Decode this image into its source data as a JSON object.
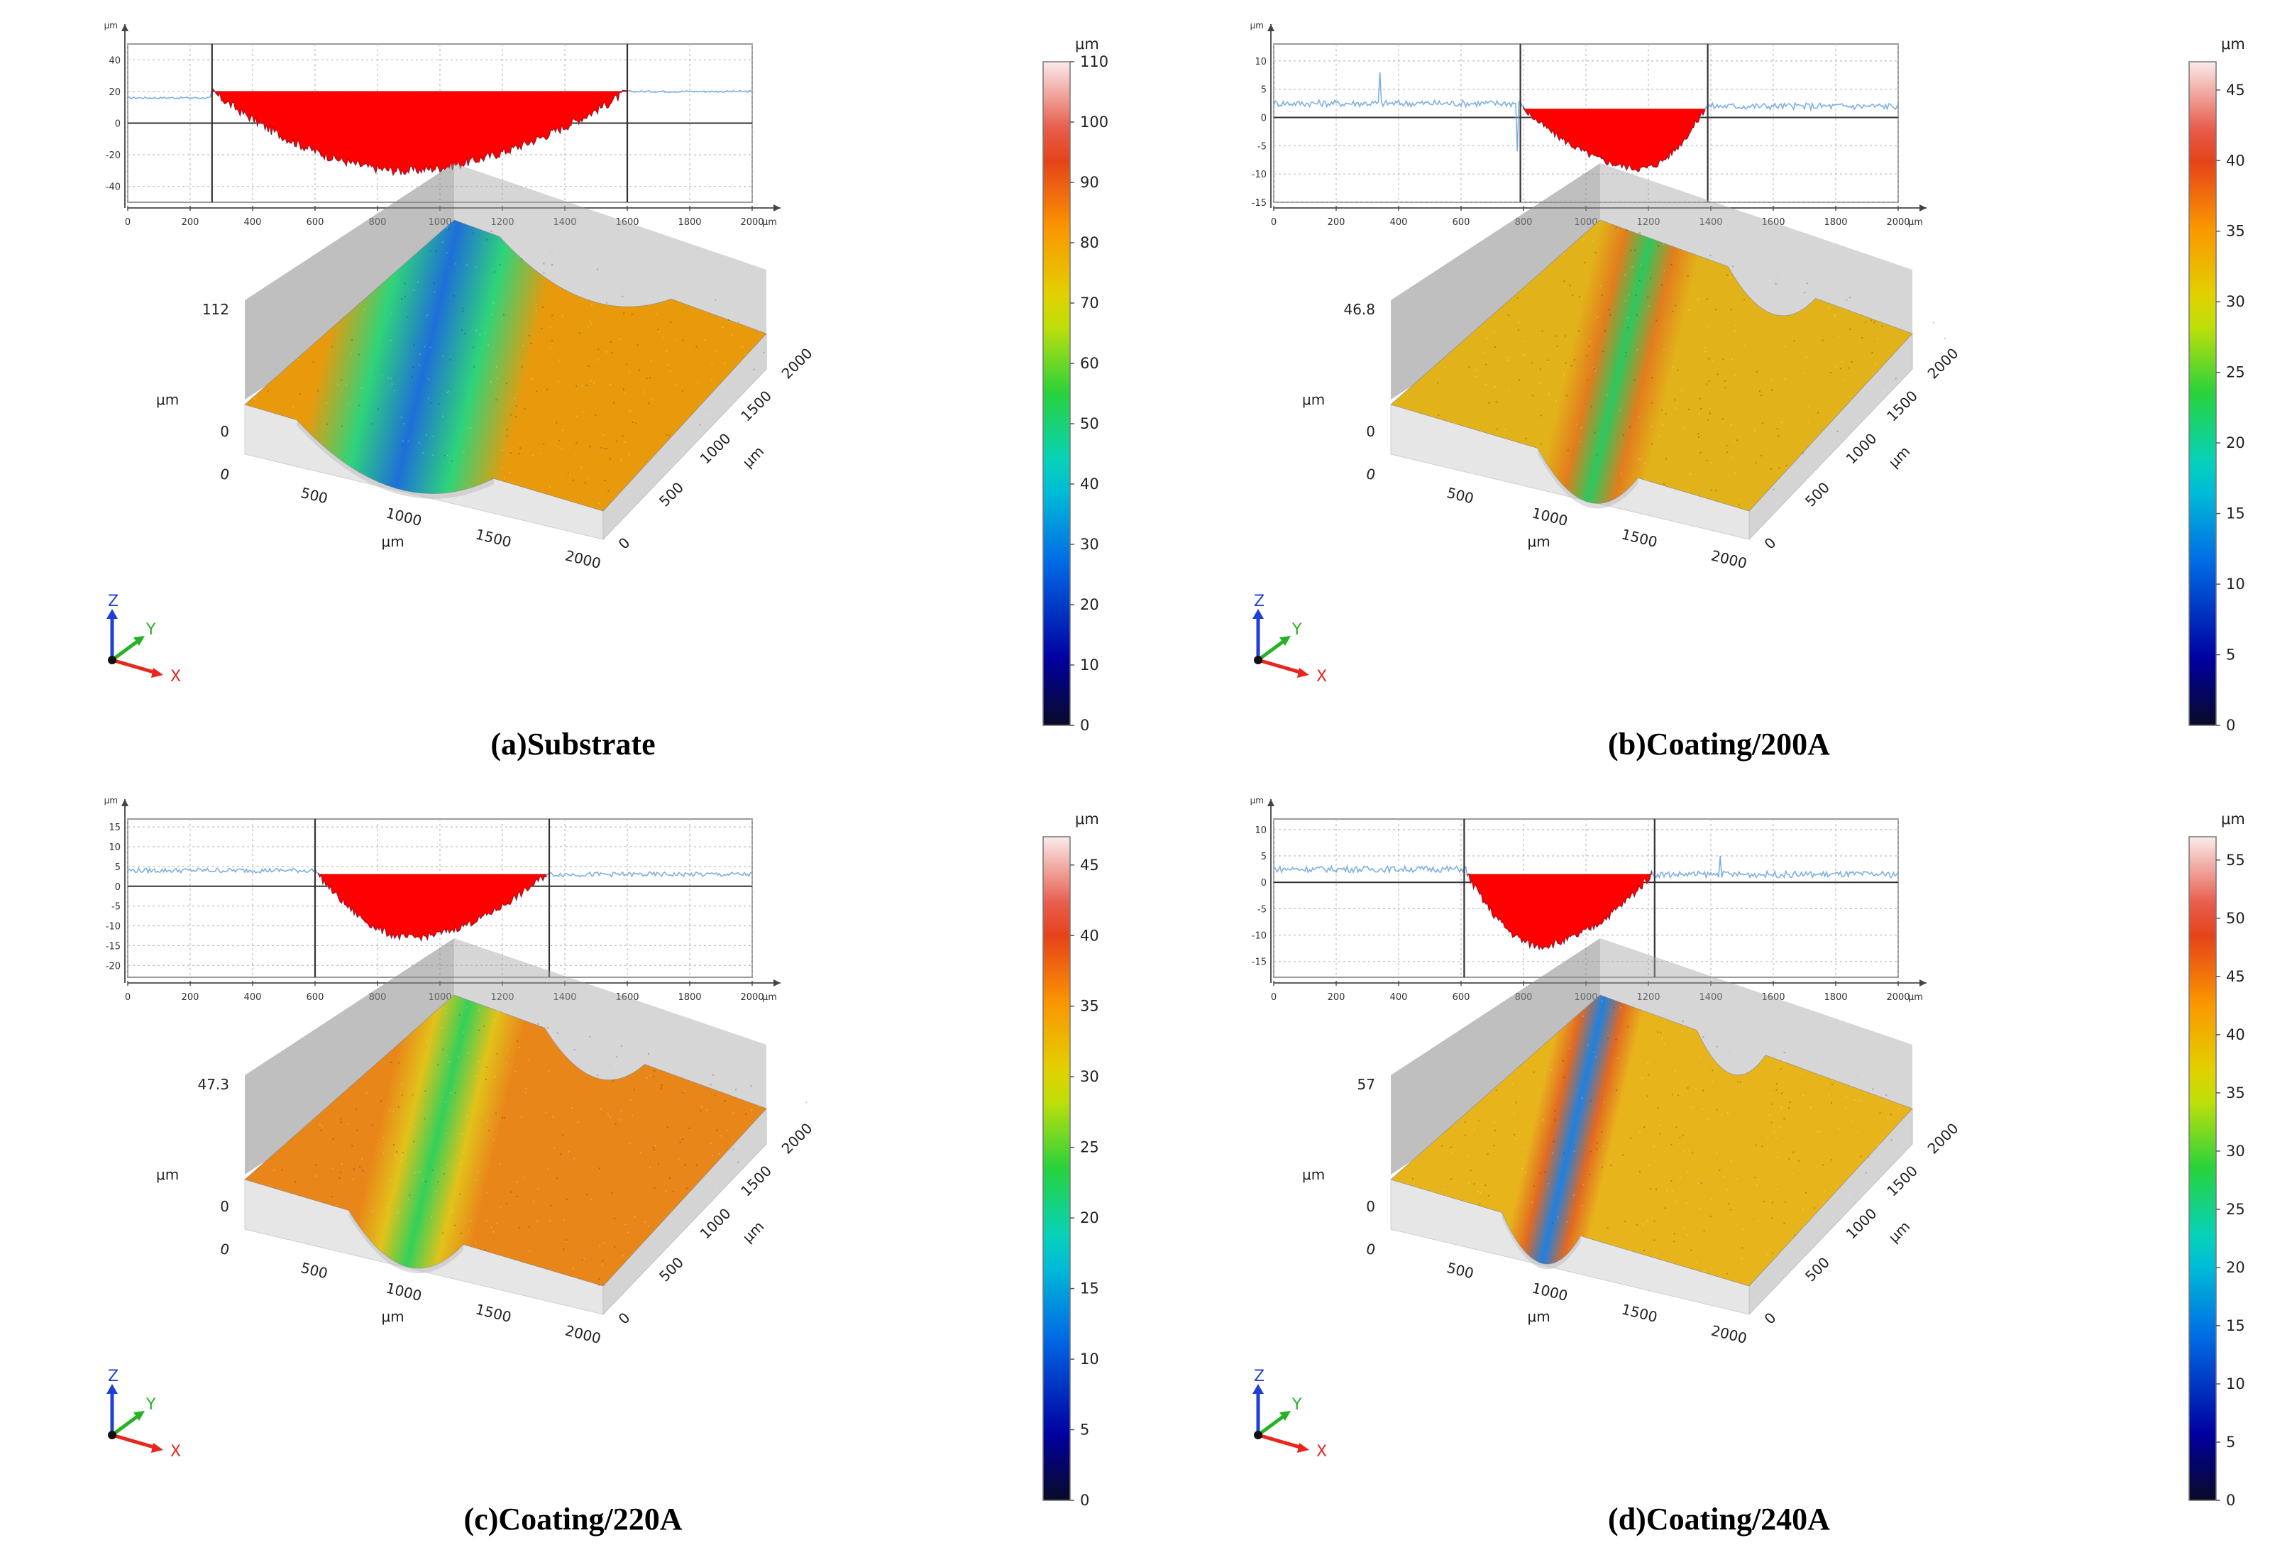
{
  "figure": {
    "unit": "μm",
    "axis_triad": {
      "x": "X",
      "y": "Y",
      "z": "Z",
      "x_color": "#e8261e",
      "y_color": "#27b124",
      "z_color": "#1f3fd6"
    },
    "colors": {
      "fill_red": "#ff0000",
      "profile_line": "#7fb0e0",
      "frame": "#555555",
      "grid": "#bdbdbd"
    }
  },
  "chart_data": [
    {
      "type": "area",
      "id": "a",
      "caption": "(a)Substrate",
      "profile": {
        "xlabel": "μm",
        "ylabel": "μm",
        "x_ticks": [
          "0",
          "200",
          "400",
          "600",
          "800",
          "1000",
          "1200",
          "1400",
          "1600",
          "1800",
          "2000"
        ],
        "x_range": [
          0,
          2000
        ],
        "y_ticks": [
          "40",
          "20",
          "0",
          "-20",
          "-40"
        ],
        "y_range": [
          -50,
          50
        ],
        "marker_x": [
          270,
          1600
        ],
        "baseline_y": 0,
        "fill_top": 20,
        "depth_min": -30,
        "surface_level_left": 16,
        "surface_level_right": 20,
        "wear_start": 270,
        "wear_end": 1600,
        "wear_center": 880
      },
      "surface3d": {
        "z_max_label": "112",
        "z_min_label": "0",
        "z_unit": "μm",
        "x_ticks": [
          "0",
          "500",
          "1000",
          "1500",
          "2000"
        ],
        "y_ticks": [
          "0",
          "500",
          "1000",
          "1500",
          "2000"
        ],
        "x_unit": "μm",
        "y_unit": "μm",
        "track_center_frac": 0.42,
        "track_width_frac": 0.55,
        "base_color": "#e89a0c",
        "track_color": "#1e6fd8",
        "mid_color": "#2fd47a"
      },
      "colorbar": {
        "unit": "μm",
        "min": 0,
        "max": 110,
        "ticks": [
          "0",
          "10",
          "20",
          "30",
          "40",
          "50",
          "60",
          "70",
          "80",
          "90",
          "100",
          "110"
        ]
      }
    },
    {
      "type": "area",
      "id": "b",
      "caption": "(b)Coating/200A",
      "profile": {
        "xlabel": "μm",
        "ylabel": "μm",
        "x_ticks": [
          "0",
          "200",
          "400",
          "600",
          "800",
          "1000",
          "1200",
          "1400",
          "1600",
          "1800",
          "2000"
        ],
        "x_range": [
          0,
          2000
        ],
        "y_ticks": [
          "10",
          "5",
          "0",
          "-5",
          "-10",
          "-15"
        ],
        "y_range": [
          -15,
          13
        ],
        "marker_x": [
          790,
          1390
        ],
        "baseline_y": 0,
        "fill_top": 1.5,
        "depth_min": -9,
        "surface_level_left": 2.5,
        "surface_level_right": 2,
        "wear_start": 800,
        "wear_end": 1380,
        "wear_center": 1180,
        "spikes": [
          {
            "x": 340,
            "y": 8
          },
          {
            "x": 780,
            "y": -6
          }
        ]
      },
      "surface3d": {
        "z_max_label": "46.8",
        "z_min_label": "0",
        "z_unit": "μm",
        "x_ticks": [
          "0",
          "500",
          "1000",
          "1500",
          "2000"
        ],
        "y_ticks": [
          "0",
          "500",
          "1000",
          "1500",
          "2000"
        ],
        "x_unit": "μm",
        "y_unit": "μm",
        "track_center_frac": 0.55,
        "track_width_frac": 0.28,
        "base_color": "#e2b21a",
        "track_color": "#2cc860",
        "mid_color": "#e27d1c"
      },
      "colorbar": {
        "unit": "μm",
        "min": 0,
        "max": 47,
        "ticks": [
          "0",
          "5",
          "10",
          "15",
          "20",
          "25",
          "30",
          "35",
          "40",
          "45"
        ]
      }
    },
    {
      "type": "area",
      "id": "c",
      "caption": "(c)Coating/220A",
      "profile": {
        "xlabel": "μm",
        "ylabel": "μm",
        "x_ticks": [
          "0",
          "200",
          "400",
          "600",
          "800",
          "1000",
          "1200",
          "1400",
          "1600",
          "1800",
          "2000"
        ],
        "x_range": [
          0,
          2000
        ],
        "y_ticks": [
          "15",
          "10",
          "5",
          "0",
          "-5",
          "-10",
          "-15",
          "-20"
        ],
        "y_range": [
          -23,
          17
        ],
        "marker_x": [
          600,
          1350
        ],
        "baseline_y": 0,
        "fill_top": 3,
        "depth_min": -13,
        "surface_level_left": 4,
        "surface_level_right": 3,
        "wear_start": 610,
        "wear_end": 1340,
        "wear_center": 900
      },
      "surface3d": {
        "z_max_label": "47.3",
        "z_min_label": "0",
        "z_unit": "μm",
        "x_ticks": [
          "0",
          "500",
          "1000",
          "1500",
          "2000"
        ],
        "y_ticks": [
          "0",
          "500",
          "1000",
          "1500",
          "2000"
        ],
        "x_unit": "μm",
        "y_unit": "μm",
        "track_center_frac": 0.45,
        "track_width_frac": 0.32,
        "base_color": "#e8861a",
        "track_color": "#34d05a",
        "mid_color": "#e2c21a"
      },
      "colorbar": {
        "unit": "μm",
        "min": 0,
        "max": 47,
        "ticks": [
          "0",
          "5",
          "10",
          "15",
          "20",
          "25",
          "30",
          "35",
          "40",
          "45"
        ]
      }
    },
    {
      "type": "area",
      "id": "d",
      "caption": "(d)Coating/240A",
      "profile": {
        "xlabel": "μm",
        "ylabel": "μm",
        "x_ticks": [
          "0",
          "200",
          "400",
          "600",
          "800",
          "1000",
          "1200",
          "1400",
          "1600",
          "1800",
          "2000"
        ],
        "x_range": [
          0,
          2000
        ],
        "y_ticks": [
          "10",
          "5",
          "0",
          "-5",
          "-10",
          "-15"
        ],
        "y_range": [
          -18,
          12
        ],
        "marker_x": [
          610,
          1220
        ],
        "baseline_y": 0,
        "fill_top": 1.5,
        "depth_min": -12,
        "surface_level_left": 2.5,
        "surface_level_right": 1.5,
        "wear_start": 620,
        "wear_end": 1210,
        "wear_center": 850,
        "spikes": [
          {
            "x": 1430,
            "y": 5
          }
        ]
      },
      "surface3d": {
        "z_max_label": "57",
        "z_min_label": "0",
        "z_unit": "μm",
        "x_ticks": [
          "0",
          "500",
          "1000",
          "1500",
          "2000"
        ],
        "y_ticks": [
          "0",
          "500",
          "1000",
          "1500",
          "2000"
        ],
        "x_unit": "μm",
        "y_unit": "μm",
        "track_center_frac": 0.42,
        "track_width_frac": 0.22,
        "base_color": "#e8b41c",
        "track_color": "#1e80e0",
        "mid_color": "#e26a22"
      },
      "colorbar": {
        "unit": "μm",
        "min": 0,
        "max": 57,
        "ticks": [
          "0",
          "5",
          "10",
          "15",
          "20",
          "25",
          "30",
          "35",
          "40",
          "45",
          "50",
          "55"
        ]
      }
    }
  ]
}
